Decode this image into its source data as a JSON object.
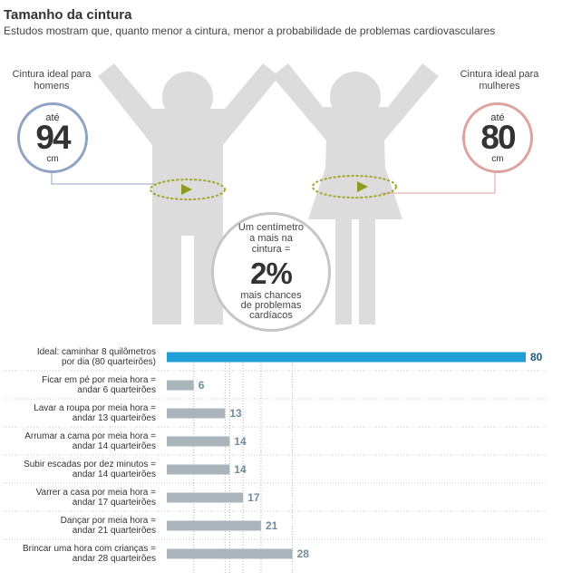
{
  "header": {
    "title": "Tamanho da cintura",
    "subtitle": "Estudos mostram que, quanto menor a cintura, menor a probabilidade de problemas cardiovasculares"
  },
  "men": {
    "label": "Cintura ideal para homens",
    "up_to": "até",
    "value": "94",
    "unit": "cm",
    "color": "#8fa4c5"
  },
  "women": {
    "label": "Cintura ideal para mulheres",
    "up_to": "até",
    "value": "80",
    "unit": "cm",
    "color": "#dca39f"
  },
  "center": {
    "top_text": "Um centímetro a mais na cintura =",
    "value": "2%",
    "bottom_text": "mais chances de problemas cardíacos"
  },
  "colors": {
    "figure": "#dcdcdc",
    "arrow_ring": "#a0a82a",
    "ideal_bar": "#1f9fd6",
    "activity_bar": "#a9b4bb",
    "activity_value": "#6f8d9d",
    "ideal_value": "#1d5a79"
  },
  "chart_data": {
    "type": "bar",
    "orientation": "horizontal",
    "categories": [
      [
        "Ideal: caminhar 8 quilômetros",
        "por dia (80 quarteirões)"
      ],
      [
        "Ficar em pé por meia hora =",
        "andar 6 quarteirões"
      ],
      [
        "Lavar a roupa por meia hora =",
        "andar 13 quarteirões"
      ],
      [
        "Arrumar a cama por meia hora =",
        "andar 14 quarteirões"
      ],
      [
        "Subir escadas por dez minutos =",
        "andar 14 quarteirões"
      ],
      [
        "Varrer a casa por meia hora =",
        "andar 17 quarteirões"
      ],
      [
        "Dançar por meia hora =",
        "andar 21 quarteirões"
      ],
      [
        "Brincar uma hora com crianças =",
        "andar 28 quarteirões"
      ]
    ],
    "values": [
      80,
      6,
      13,
      14,
      14,
      17,
      21,
      28
    ],
    "xlim": [
      0,
      80
    ]
  }
}
